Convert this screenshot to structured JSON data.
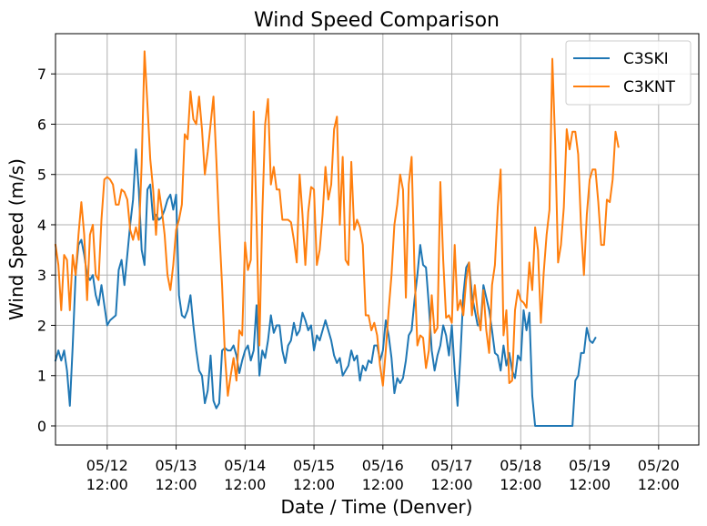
{
  "chart_data": {
    "type": "line",
    "title": "Wind Speed Comparison",
    "xlabel": "Date / Time (Denver)",
    "ylabel": "Wind Speed (m/s)",
    "xlim": [
      "2024-05-11 18:00",
      "2024-05-21 02:00"
    ],
    "ylim": [
      -0.38,
      7.8
    ],
    "x_ticks": [
      {
        "at": "2024-05-12 12:00",
        "date": "05/12",
        "time": "12:00"
      },
      {
        "at": "2024-05-13 12:00",
        "date": "05/13",
        "time": "12:00"
      },
      {
        "at": "2024-05-14 12:00",
        "date": "05/14",
        "time": "12:00"
      },
      {
        "at": "2024-05-15 12:00",
        "date": "05/15",
        "time": "12:00"
      },
      {
        "at": "2024-05-16 12:00",
        "date": "05/16",
        "time": "12:00"
      },
      {
        "at": "2024-05-17 12:00",
        "date": "05/17",
        "time": "12:00"
      },
      {
        "at": "2024-05-18 12:00",
        "date": "05/18",
        "time": "12:00"
      },
      {
        "at": "2024-05-19 12:00",
        "date": "05/19",
        "time": "12:00"
      },
      {
        "at": "2024-05-20 12:00",
        "date": "05/20",
        "time": "12:00"
      }
    ],
    "y_ticks": [
      0,
      1,
      2,
      3,
      4,
      5,
      6,
      7
    ],
    "grid": true,
    "legend_position": "top-right",
    "series": [
      {
        "name": "C3SKI",
        "color": "#1f77b4",
        "start": "2024-05-11 18:00",
        "step_hours": 1,
        "values": [
          1.3,
          1.5,
          1.3,
          1.5,
          1.1,
          0.4,
          1.6,
          3.0,
          3.6,
          3.7,
          3.4,
          3.0,
          2.9,
          3.0,
          2.6,
          2.4,
          2.8,
          2.4,
          2.0,
          2.1,
          2.15,
          2.2,
          3.1,
          3.3,
          2.8,
          3.4,
          4.0,
          4.5,
          5.5,
          4.7,
          3.5,
          3.2,
          4.7,
          4.8,
          4.1,
          4.2,
          4.1,
          4.15,
          4.3,
          4.5,
          4.6,
          4.3,
          4.6,
          2.6,
          2.2,
          2.15,
          2.3,
          2.6,
          2.0,
          1.5,
          1.1,
          1.0,
          0.45,
          0.7,
          1.4,
          0.5,
          0.35,
          0.45,
          1.5,
          1.55,
          1.5,
          1.5,
          1.6,
          1.4,
          1.05,
          1.3,
          1.5,
          1.6,
          1.3,
          1.5,
          2.4,
          1.0,
          1.5,
          1.35,
          1.7,
          2.2,
          1.85,
          2.0,
          2.0,
          1.5,
          1.25,
          1.6,
          1.7,
          2.05,
          1.8,
          1.9,
          2.25,
          2.1,
          1.9,
          2.0,
          1.5,
          1.8,
          1.7,
          1.9,
          2.1,
          1.9,
          1.7,
          1.4,
          1.25,
          1.35,
          1.0,
          1.1,
          1.2,
          1.5,
          1.3,
          1.4,
          0.9,
          1.2,
          1.1,
          1.3,
          1.25,
          1.6,
          1.6,
          1.3,
          1.5,
          2.1,
          1.8,
          1.35,
          0.65,
          0.95,
          0.85,
          0.95,
          1.3,
          1.8,
          1.9,
          2.5,
          3.0,
          3.6,
          3.2,
          3.15,
          2.4,
          1.5,
          1.1,
          1.4,
          1.6,
          2.0,
          1.8,
          1.4,
          2.0,
          1.1,
          0.4,
          1.4,
          2.6,
          3.15,
          3.25,
          2.6,
          2.3,
          2.0,
          2.0,
          2.8,
          2.55,
          2.3,
          1.9,
          1.45,
          1.4,
          1.1,
          1.6,
          1.2,
          1.45,
          1.1,
          0.95,
          1.4,
          1.3,
          2.3,
          1.9,
          2.25,
          0.6,
          0.0,
          0.0,
          0.0,
          0.0,
          0.0,
          0.0,
          0.0,
          0.0,
          0.0,
          0.0,
          0.0,
          0.0,
          0.0,
          0.0,
          0.9,
          1.0,
          1.45,
          1.45,
          1.95,
          1.7,
          1.65,
          1.75
        ]
      },
      {
        "name": "C3KNT",
        "color": "#ff7f0e",
        "start": "2024-05-11 18:00",
        "step_hours": 1,
        "values": [
          3.6,
          3.2,
          2.3,
          3.4,
          3.3,
          2.3,
          3.4,
          3.0,
          3.8,
          4.45,
          3.8,
          2.5,
          3.8,
          4.0,
          3.0,
          2.9,
          4.1,
          4.9,
          4.95,
          4.9,
          4.8,
          4.4,
          4.4,
          4.7,
          4.65,
          4.5,
          3.9,
          3.7,
          3.95,
          3.7,
          5.2,
          7.45,
          6.4,
          5.3,
          4.7,
          3.8,
          4.7,
          4.3,
          3.8,
          3.0,
          2.7,
          3.2,
          3.9,
          4.1,
          4.4,
          5.8,
          5.7,
          6.65,
          6.1,
          6.0,
          6.55,
          5.9,
          5.0,
          5.45,
          6.0,
          6.55,
          5.3,
          3.95,
          2.8,
          1.4,
          0.6,
          1.0,
          1.35,
          0.9,
          1.9,
          1.8,
          3.65,
          3.1,
          3.3,
          6.25,
          4.1,
          1.6,
          4.2,
          6.0,
          6.5,
          4.8,
          5.15,
          4.7,
          4.7,
          4.1,
          4.1,
          4.1,
          4.05,
          3.7,
          3.25,
          5.0,
          4.2,
          3.2,
          4.25,
          4.75,
          4.7,
          3.2,
          3.5,
          4.2,
          5.15,
          4.5,
          4.8,
          5.9,
          6.15,
          4.0,
          5.35,
          3.3,
          3.2,
          5.25,
          3.9,
          4.1,
          3.95,
          3.6,
          2.2,
          2.2,
          1.9,
          2.05,
          1.8,
          1.2,
          0.8,
          1.5,
          2.3,
          3.0,
          4.0,
          4.4,
          5.0,
          4.7,
          2.55,
          4.8,
          5.35,
          3.1,
          1.6,
          1.8,
          1.75,
          1.15,
          1.5,
          2.6,
          1.85,
          1.95,
          4.85,
          3.3,
          2.15,
          2.2,
          2.05,
          3.6,
          2.3,
          2.5,
          2.2,
          2.9,
          3.25,
          2.2,
          2.8,
          2.25,
          1.9,
          2.7,
          1.9,
          1.45,
          2.8,
          3.2,
          4.35,
          5.1,
          1.8,
          2.3,
          0.85,
          0.9,
          2.3,
          2.7,
          2.5,
          2.45,
          2.35,
          3.25,
          2.7,
          3.95,
          3.5,
          2.05,
          3.05,
          3.8,
          4.3,
          7.3,
          5.6,
          3.25,
          3.6,
          4.35,
          5.9,
          5.5,
          5.85,
          5.85,
          5.4,
          3.95,
          3.0,
          4.2,
          4.9,
          5.1,
          5.1,
          4.45,
          3.6,
          3.6,
          4.5,
          4.45,
          4.9,
          5.85,
          5.55
        ]
      }
    ]
  }
}
